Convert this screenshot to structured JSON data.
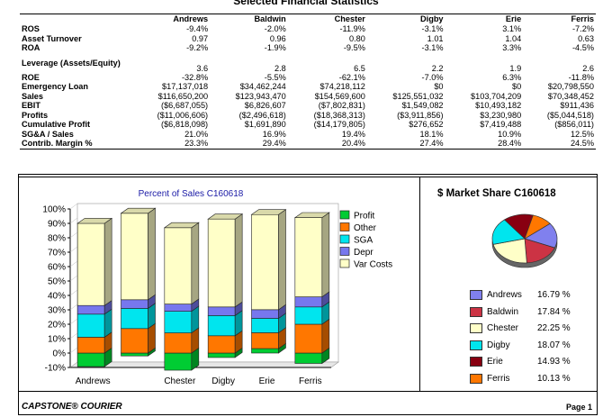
{
  "page_title": "Selected Financial Statistics",
  "table": {
    "columns": [
      "Andrews",
      "Baldwin",
      "Chester",
      "Digby",
      "Erie",
      "Ferris"
    ],
    "rows": [
      {
        "label": "ROS",
        "values": [
          "-9.4%",
          "-2.0%",
          "-11.9%",
          "-3.1%",
          "3.1%",
          "-7.2%"
        ]
      },
      {
        "label": "Asset Turnover",
        "values": [
          "0.97",
          "0.96",
          "0.80",
          "1.01",
          "1.04",
          "0.63"
        ]
      },
      {
        "label": "ROA",
        "values": [
          "-9.2%",
          "-1.9%",
          "-9.5%",
          "-3.1%",
          "3.3%",
          "-4.5%"
        ]
      },
      {
        "label": "Leverage (Assets/Equity)",
        "values": [
          "3.6",
          "2.8",
          "6.5",
          "2.2",
          "1.9",
          "2.6"
        ]
      },
      {
        "label": "ROE",
        "values": [
          "-32.8%",
          "-5.5%",
          "-62.1%",
          "-7.0%",
          "6.3%",
          "-11.8%"
        ]
      },
      {
        "label": "Emergency Loan",
        "values": [
          "$17,137,018",
          "$34,462,244",
          "$74,218,112",
          "$0",
          "$0",
          "$20,798,550"
        ]
      },
      {
        "label": "Sales",
        "values": [
          "$116,650,200",
          "$123,943,470",
          "$154,569,600",
          "$125,551,032",
          "$103,704,209",
          "$70,348,452"
        ]
      },
      {
        "label": "EBIT",
        "values": [
          "($6,687,055)",
          "$6,826,607",
          "($7,802,831)",
          "$1,549,082",
          "$10,493,182",
          "$911,436"
        ]
      },
      {
        "label": "Profits",
        "values": [
          "($11,006,606)",
          "($2,496,618)",
          "($18,368,313)",
          "($3,911,856)",
          "$3,230,980",
          "($5,044,518)"
        ]
      },
      {
        "label": "Cumulative Profit",
        "values": [
          "($6,818,098)",
          "$1,691,890",
          "($14,179,805)",
          "$276,652",
          "$7,419,488",
          "($856,011)"
        ]
      },
      {
        "label": "SG&A / Sales",
        "values": [
          "21.0%",
          "16.9%",
          "19.4%",
          "18.1%",
          "10.9%",
          "12.5%"
        ]
      },
      {
        "label": "Contrib. Margin %",
        "values": [
          "23.3%",
          "29.4%",
          "20.4%",
          "27.4%",
          "28.4%",
          "24.5%"
        ]
      }
    ]
  },
  "chart_data": [
    {
      "type": "bar",
      "stacked": true,
      "title": "Percent of Sales  C160618",
      "categories": [
        "Andrews",
        "Baldwin",
        "Chester",
        "Digby",
        "Erie",
        "Ferris"
      ],
      "x_tick_labels": [
        "Andrews",
        "",
        "Chester",
        "Digby",
        "Erie",
        "Ferris"
      ],
      "ylim": [
        -10,
        100
      ],
      "y_ticks": [
        "100%",
        "90%",
        "80%",
        "70%",
        "60%",
        "50%",
        "40%",
        "30%",
        "20%",
        "10%",
        "0%",
        "-10%"
      ],
      "y_tick_values": [
        100,
        90,
        80,
        70,
        60,
        50,
        40,
        30,
        20,
        10,
        0,
        -10
      ],
      "legend_position": "right",
      "series": [
        {
          "name": "Profit",
          "color": "#00cc33",
          "values": [
            -9.4,
            -2.0,
            -11.9,
            -3.1,
            3.1,
            -7.2
          ]
        },
        {
          "name": "Other",
          "color": "#ff7700",
          "values": [
            11,
            17,
            14,
            12,
            11,
            20
          ]
        },
        {
          "name": "SGA",
          "color": "#00e5ee",
          "values": [
            16,
            14,
            15,
            14,
            10,
            12
          ]
        },
        {
          "name": "Depr",
          "color": "#7777ee",
          "values": [
            6,
            6,
            5,
            6,
            6,
            7
          ]
        },
        {
          "name": "Var Costs",
          "color": "#ffffc8",
          "values": [
            57,
            60,
            53,
            61,
            66,
            55
          ]
        }
      ]
    },
    {
      "type": "pie",
      "title": "$ Market Share  C160618",
      "legend_position": "right",
      "slices": [
        {
          "name": "Andrews",
          "value": 16.79,
          "label": "16.79 %",
          "color": "#8080ee"
        },
        {
          "name": "Baldwin",
          "value": 17.84,
          "label": "17.84 %",
          "color": "#cc3344"
        },
        {
          "name": "Chester",
          "value": 22.25,
          "label": "22.25 %",
          "color": "#ffffc8"
        },
        {
          "name": "Digby",
          "value": 18.07,
          "label": "18.07 %",
          "color": "#00e5ee"
        },
        {
          "name": "Erie",
          "value": 14.93,
          "label": "14.93 %",
          "color": "#880011"
        },
        {
          "name": "Ferris",
          "value": 10.13,
          "label": "10.13 %",
          "color": "#ff7700"
        }
      ]
    }
  ],
  "footer": {
    "brand": "CAPSTONE® COURIER",
    "page": "Page 1"
  }
}
